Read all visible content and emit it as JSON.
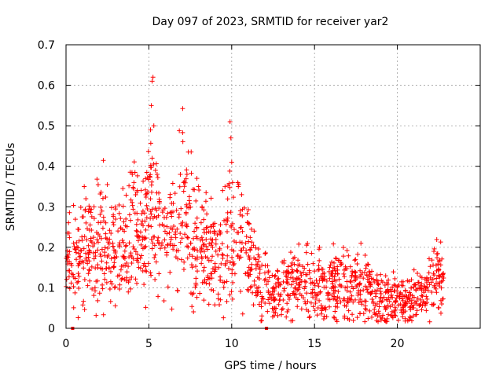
{
  "chart_data": {
    "type": "scatter",
    "title": "Day 097 of 2023, SRMTID for receiver yar2",
    "xlabel": "GPS time / hours",
    "ylabel": "SRMTID / TECUs",
    "xlim": [
      0,
      25
    ],
    "ylim": [
      0,
      0.7
    ],
    "xticks": [
      0,
      5,
      10,
      15,
      20
    ],
    "yticks": [
      0,
      0.1,
      0.2,
      0.3,
      0.4,
      0.5,
      0.6,
      0.7
    ],
    "xtick_labels": [
      "0",
      "5",
      "10",
      "15",
      "20"
    ],
    "ytick_labels": [
      "0",
      "0.1",
      "0.2",
      "0.3",
      "0.4",
      "0.5",
      "0.6",
      "0.7"
    ],
    "grid": true,
    "marker": "plus",
    "color": "#ff0000",
    "series": [
      {
        "name": "SRMTID",
        "profile": [
          [
            0.0,
            0.15
          ],
          [
            0.3,
            0.19
          ],
          [
            0.7,
            0.16
          ],
          [
            1.0,
            0.19
          ],
          [
            1.5,
            0.2
          ],
          [
            2.0,
            0.23
          ],
          [
            2.5,
            0.22
          ],
          [
            3.0,
            0.18
          ],
          [
            3.5,
            0.19
          ],
          [
            4.0,
            0.25
          ],
          [
            4.5,
            0.24
          ],
          [
            5.0,
            0.29
          ],
          [
            5.5,
            0.26
          ],
          [
            6.0,
            0.2
          ],
          [
            6.5,
            0.25
          ],
          [
            7.0,
            0.3
          ],
          [
            7.5,
            0.26
          ],
          [
            8.0,
            0.2
          ],
          [
            8.5,
            0.18
          ],
          [
            9.0,
            0.16
          ],
          [
            9.5,
            0.2
          ],
          [
            10.0,
            0.21
          ],
          [
            10.5,
            0.22
          ],
          [
            11.0,
            0.17
          ],
          [
            11.5,
            0.12
          ],
          [
            12.0,
            0.1
          ],
          [
            12.5,
            0.08
          ],
          [
            13.0,
            0.1
          ],
          [
            13.5,
            0.11
          ],
          [
            14.0,
            0.1
          ],
          [
            14.5,
            0.12
          ],
          [
            15.0,
            0.11
          ],
          [
            15.5,
            0.1
          ],
          [
            16.0,
            0.1
          ],
          [
            16.5,
            0.12
          ],
          [
            17.0,
            0.1
          ],
          [
            17.5,
            0.11
          ],
          [
            18.0,
            0.1
          ],
          [
            18.5,
            0.09
          ],
          [
            19.0,
            0.07
          ],
          [
            19.5,
            0.07
          ],
          [
            20.0,
            0.07
          ],
          [
            20.5,
            0.06
          ],
          [
            21.0,
            0.07
          ],
          [
            21.5,
            0.07
          ],
          [
            22.0,
            0.12
          ],
          [
            22.5,
            0.14
          ],
          [
            22.8,
            0.12
          ]
        ],
        "spikes": [
          [
            4.0,
            0.38
          ],
          [
            4.1,
            0.36
          ],
          [
            4.3,
            0.34
          ],
          [
            5.1,
            0.49
          ],
          [
            5.15,
            0.55
          ],
          [
            5.2,
            0.61
          ],
          [
            5.25,
            0.62
          ],
          [
            5.3,
            0.5
          ],
          [
            5.2,
            0.42
          ],
          [
            5.4,
            0.39
          ],
          [
            5.5,
            0.38
          ],
          [
            6.9,
            0.38
          ],
          [
            7.1,
            0.36
          ],
          [
            7.3,
            0.38
          ],
          [
            7.9,
            0.37
          ],
          [
            8.0,
            0.35
          ],
          [
            9.9,
            0.51
          ],
          [
            9.95,
            0.47
          ],
          [
            10.0,
            0.41
          ],
          [
            10.05,
            0.36
          ],
          [
            10.4,
            0.35
          ],
          [
            10.6,
            0.33
          ],
          [
            1.1,
            0.35
          ],
          [
            1.2,
            0.32
          ],
          [
            15.3,
            0.2
          ],
          [
            17.8,
            0.21
          ],
          [
            22.2,
            0.19
          ]
        ],
        "zero_points": [
          0.4,
          12.1
        ]
      }
    ]
  }
}
